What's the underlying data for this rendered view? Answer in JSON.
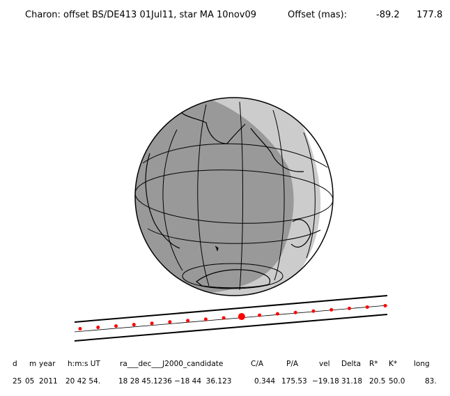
{
  "header": {
    "title": "Charon: offset BS/DE413 01Jul11, star MA 10nov09",
    "offset_label": "Offset (mas):",
    "offset_values": [
      "-89.2",
      "177.8"
    ]
  },
  "colors": {
    "night": "#999999",
    "twilight": "#cccccc",
    "day": "#ffffff",
    "track": "#000000",
    "points": "#ff0000"
  },
  "track": {
    "points_count": 18,
    "closest_approach_index": 9
  },
  "table": {
    "headers": [
      "d",
      "m",
      "year",
      "h:m:s UT",
      "ra___dec___J2000_candidate",
      "C/A",
      "P/A",
      "vel",
      "Delta",
      "R*",
      "K*",
      "long"
    ],
    "values": [
      "25",
      "05",
      "2011",
      "20 42 54.",
      "18 28 45.1236 −18 44  36.123",
      "0.344",
      "175.53",
      "−19.18",
      "31.18",
      "20.5",
      "50.0",
      "83."
    ]
  }
}
